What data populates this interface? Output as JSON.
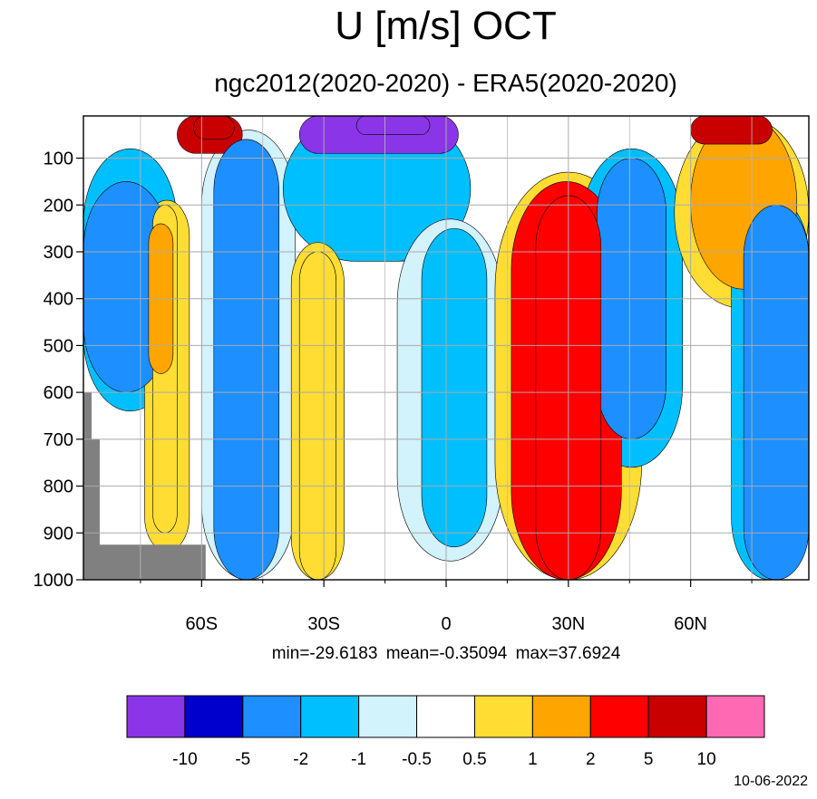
{
  "chart_data": {
    "type": "heatmap",
    "title": "U [m/s] OCT",
    "subtitle": "ngc2012(2020-2020) - ERA5(2020-2020)",
    "x_ticks": [
      "60S",
      "30S",
      "0",
      "30N",
      "60N"
    ],
    "x_tick_values": [
      -60,
      -30,
      0,
      30,
      60
    ],
    "xlim": [
      -89,
      89
    ],
    "y_ticks": [
      "100",
      "200",
      "300",
      "400",
      "500",
      "600",
      "700",
      "800",
      "900",
      "1000"
    ],
    "y_tick_values": [
      100,
      200,
      300,
      400,
      500,
      600,
      700,
      800,
      900,
      1000
    ],
    "ylim": [
      10,
      1000
    ],
    "grid": true,
    "stats": {
      "min": "min=-29.6183",
      "mean": "mean=-0.35094",
      "max": "max=37.6924"
    },
    "colorbar": {
      "levels": [
        "-10",
        "-5",
        "-2",
        "-1",
        "-0.5",
        "0.5",
        "1",
        "2",
        "5",
        "10"
      ],
      "colors": [
        "#8b35e8",
        "#0000cc",
        "#1e8fff",
        "#00bfff",
        "#d2f2fc",
        "#ffffff",
        "#ffdd33",
        "#ffa500",
        "#ff0000",
        "#c80000",
        "#ff69b4"
      ]
    },
    "features": [
      {
        "lat": [
          -89,
          -68
        ],
        "p": [
          150,
          600
        ],
        "value": -2
      },
      {
        "lat": [
          -72,
          -66
        ],
        "p": [
          200,
          900
        ],
        "value": 1
      },
      {
        "lat": [
          -73,
          -67
        ],
        "p": [
          240,
          560
        ],
        "value": 2
      },
      {
        "lat": [
          -66,
          -50
        ],
        "p": [
          10,
          90
        ],
        "value": 10
      },
      {
        "lat": [
          -57,
          -41
        ],
        "p": [
          60,
          1000
        ],
        "value": -2
      },
      {
        "lat": [
          -36,
          3
        ],
        "p": [
          10,
          90
        ],
        "value": -10
      },
      {
        "lat": [
          -36,
          -27
        ],
        "p": [
          300,
          1000
        ],
        "value": 1
      },
      {
        "lat": [
          -6,
          10
        ],
        "p": [
          250,
          930
        ],
        "value": -1
      },
      {
        "lat": [
          16,
          43
        ],
        "p": [
          150,
          1000
        ],
        "value": 5
      },
      {
        "lat": [
          37,
          54
        ],
        "p": [
          100,
          700
        ],
        "value": -2
      },
      {
        "lat": [
          60,
          86
        ],
        "p": [
          10,
          380
        ],
        "value": 2
      },
      {
        "lat": [
          73,
          89
        ],
        "p": [
          200,
          1000
        ],
        "value": -2
      }
    ],
    "missing_region": "topography below 600-1000 hPa near 80S"
  },
  "date": "10-06-2022"
}
